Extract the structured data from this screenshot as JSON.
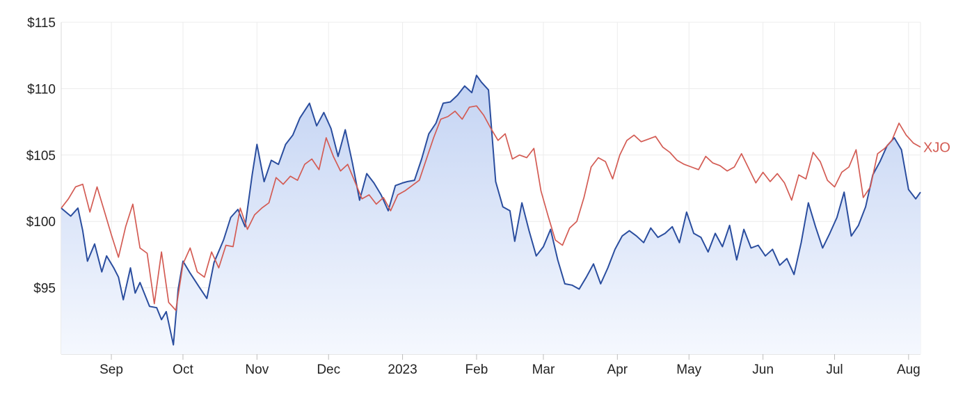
{
  "chart_data": {
    "type": "area",
    "y_ticks": [
      {
        "value": 95,
        "label": "$95"
      },
      {
        "value": 100,
        "label": "$100"
      },
      {
        "value": 105,
        "label": "$105"
      },
      {
        "value": 110,
        "label": "$110"
      },
      {
        "value": 115,
        "label": "$115"
      }
    ],
    "x_ticks": [
      {
        "date": "2022-09-01",
        "label": "Sep"
      },
      {
        "date": "2022-10-01",
        "label": "Oct"
      },
      {
        "date": "2022-11-01",
        "label": "Nov"
      },
      {
        "date": "2022-12-01",
        "label": "Dec"
      },
      {
        "date": "2023-01-01",
        "label": "2023"
      },
      {
        "date": "2023-02-01",
        "label": "Feb"
      },
      {
        "date": "2023-03-01",
        "label": "Mar"
      },
      {
        "date": "2023-04-01",
        "label": "Apr"
      },
      {
        "date": "2023-05-01",
        "label": "May"
      },
      {
        "date": "2023-06-01",
        "label": "Jun"
      },
      {
        "date": "2023-07-01",
        "label": "Jul"
      },
      {
        "date": "2023-08-01",
        "label": "Aug"
      }
    ],
    "x_range": [
      "2022-08-11",
      "2023-08-06"
    ],
    "y_range": [
      90,
      115
    ],
    "grid": true,
    "series": [
      {
        "name": "",
        "color": "#2a4d9e",
        "fill_top": "#c3d3f3",
        "fill_bottom": "#f5f8fe",
        "x": [
          "2022-08-11",
          "2022-08-15",
          "2022-08-18",
          "2022-08-20",
          "2022-08-22",
          "2022-08-25",
          "2022-08-28",
          "2022-08-30",
          "2022-09-02",
          "2022-09-04",
          "2022-09-06",
          "2022-09-09",
          "2022-09-11",
          "2022-09-13",
          "2022-09-17",
          "2022-09-20",
          "2022-09-22",
          "2022-09-24",
          "2022-09-27",
          "2022-09-29",
          "2022-10-01",
          "2022-10-04",
          "2022-10-08",
          "2022-10-11",
          "2022-10-14",
          "2022-10-18",
          "2022-10-21",
          "2022-10-24",
          "2022-10-27",
          "2022-10-30",
          "2022-11-01",
          "2022-11-04",
          "2022-11-07",
          "2022-11-10",
          "2022-11-13",
          "2022-11-16",
          "2022-11-19",
          "2022-11-23",
          "2022-11-26",
          "2022-11-29",
          "2022-12-02",
          "2022-12-05",
          "2022-12-08",
          "2022-12-11",
          "2022-12-14",
          "2022-12-17",
          "2022-12-20",
          "2022-12-23",
          "2022-12-26",
          "2022-12-29",
          "2023-01-01",
          "2023-01-03",
          "2023-01-06",
          "2023-01-09",
          "2023-01-12",
          "2023-01-15",
          "2023-01-18",
          "2023-01-21",
          "2023-01-24",
          "2023-01-27",
          "2023-01-30",
          "2023-02-01",
          "2023-02-03",
          "2023-02-06",
          "2023-02-09",
          "2023-02-12",
          "2023-02-15",
          "2023-02-17",
          "2023-02-20",
          "2023-02-23",
          "2023-02-26",
          "2023-03-01",
          "2023-03-04",
          "2023-03-07",
          "2023-03-10",
          "2023-03-13",
          "2023-03-16",
          "2023-03-19",
          "2023-03-22",
          "2023-03-25",
          "2023-03-28",
          "2023-03-31",
          "2023-04-03",
          "2023-04-06",
          "2023-04-09",
          "2023-04-12",
          "2023-04-15",
          "2023-04-18",
          "2023-04-21",
          "2023-04-24",
          "2023-04-27",
          "2023-04-30",
          "2023-05-03",
          "2023-05-06",
          "2023-05-09",
          "2023-05-12",
          "2023-05-15",
          "2023-05-18",
          "2023-05-21",
          "2023-05-24",
          "2023-05-27",
          "2023-05-30",
          "2023-06-02",
          "2023-06-05",
          "2023-06-08",
          "2023-06-11",
          "2023-06-14",
          "2023-06-17",
          "2023-06-20",
          "2023-06-23",
          "2023-06-26",
          "2023-06-29",
          "2023-07-02",
          "2023-07-05",
          "2023-07-08",
          "2023-07-11",
          "2023-07-14",
          "2023-07-17",
          "2023-07-20",
          "2023-07-23",
          "2023-07-26",
          "2023-07-29",
          "2023-08-01",
          "2023-08-04",
          "2023-08-06"
        ],
        "values": [
          101.0,
          100.4,
          101.0,
          99.3,
          97.0,
          98.3,
          96.2,
          97.4,
          96.5,
          95.8,
          94.1,
          96.5,
          94.6,
          95.4,
          93.6,
          93.5,
          92.6,
          93.2,
          90.7,
          94.9,
          97.0,
          96.1,
          95.0,
          94.2,
          96.9,
          98.6,
          100.3,
          100.9,
          99.6,
          103.5,
          105.8,
          103.0,
          104.6,
          104.3,
          105.8,
          106.5,
          107.8,
          108.9,
          107.2,
          108.2,
          107.0,
          104.9,
          106.9,
          104.4,
          101.6,
          103.6,
          102.9,
          102.0,
          100.8,
          102.7,
          102.9,
          103.0,
          103.1,
          104.7,
          106.6,
          107.4,
          108.9,
          109.0,
          109.5,
          110.2,
          109.7,
          111.0,
          110.5,
          109.9,
          103.0,
          101.1,
          100.8,
          98.5,
          101.4,
          99.3,
          97.4,
          98.1,
          99.4,
          97.1,
          95.3,
          95.2,
          94.9,
          95.8,
          96.8,
          95.3,
          96.5,
          97.9,
          98.9,
          99.3,
          98.9,
          98.4,
          99.5,
          98.8,
          99.1,
          99.6,
          98.4,
          100.7,
          99.1,
          98.8,
          97.7,
          99.1,
          98.1,
          99.7,
          97.1,
          99.4,
          98.0,
          98.2,
          97.4,
          97.9,
          96.7,
          97.2,
          96.0,
          98.4,
          101.4,
          99.6,
          98.0,
          99.1,
          100.3,
          102.2,
          98.9,
          99.7,
          101.1,
          103.5,
          104.5,
          105.7,
          106.3,
          105.4,
          102.4,
          101.7,
          102.2
        ]
      },
      {
        "name": "XJO",
        "color": "#d35b53",
        "x": [
          "2022-08-11",
          "2022-08-14",
          "2022-08-17",
          "2022-08-20",
          "2022-08-23",
          "2022-08-26",
          "2022-08-29",
          "2022-09-01",
          "2022-09-04",
          "2022-09-07",
          "2022-09-10",
          "2022-09-13",
          "2022-09-16",
          "2022-09-19",
          "2022-09-22",
          "2022-09-25",
          "2022-09-28",
          "2022-10-01",
          "2022-10-04",
          "2022-10-07",
          "2022-10-10",
          "2022-10-13",
          "2022-10-16",
          "2022-10-19",
          "2022-10-22",
          "2022-10-25",
          "2022-10-28",
          "2022-10-31",
          "2022-11-03",
          "2022-11-06",
          "2022-11-09",
          "2022-11-12",
          "2022-11-15",
          "2022-11-18",
          "2022-11-21",
          "2022-11-24",
          "2022-11-27",
          "2022-11-30",
          "2022-12-03",
          "2022-12-06",
          "2022-12-09",
          "2022-12-12",
          "2022-12-15",
          "2022-12-18",
          "2022-12-21",
          "2022-12-24",
          "2022-12-27",
          "2022-12-30",
          "2023-01-02",
          "2023-01-05",
          "2023-01-08",
          "2023-01-11",
          "2023-01-14",
          "2023-01-17",
          "2023-01-20",
          "2023-01-23",
          "2023-01-26",
          "2023-01-29",
          "2023-02-01",
          "2023-02-04",
          "2023-02-07",
          "2023-02-10",
          "2023-02-13",
          "2023-02-16",
          "2023-02-19",
          "2023-02-22",
          "2023-02-25",
          "2023-02-28",
          "2023-03-03",
          "2023-03-06",
          "2023-03-09",
          "2023-03-12",
          "2023-03-15",
          "2023-03-18",
          "2023-03-21",
          "2023-03-24",
          "2023-03-27",
          "2023-03-30",
          "2023-04-02",
          "2023-04-05",
          "2023-04-08",
          "2023-04-11",
          "2023-04-14",
          "2023-04-17",
          "2023-04-20",
          "2023-04-23",
          "2023-04-26",
          "2023-04-29",
          "2023-05-02",
          "2023-05-05",
          "2023-05-08",
          "2023-05-11",
          "2023-05-14",
          "2023-05-17",
          "2023-05-20",
          "2023-05-23",
          "2023-05-26",
          "2023-05-29",
          "2023-06-01",
          "2023-06-04",
          "2023-06-07",
          "2023-06-10",
          "2023-06-13",
          "2023-06-16",
          "2023-06-19",
          "2023-06-22",
          "2023-06-25",
          "2023-06-28",
          "2023-07-01",
          "2023-07-04",
          "2023-07-07",
          "2023-07-10",
          "2023-07-13",
          "2023-07-16",
          "2023-07-19",
          "2023-07-22",
          "2023-07-25",
          "2023-07-28",
          "2023-07-31",
          "2023-08-03",
          "2023-08-06"
        ],
        "values": [
          101.0,
          101.7,
          102.6,
          102.8,
          100.7,
          102.6,
          100.8,
          99.0,
          97.3,
          99.6,
          101.3,
          98.0,
          97.6,
          93.8,
          97.7,
          93.9,
          93.3,
          96.8,
          98.0,
          96.2,
          95.8,
          97.7,
          96.5,
          98.2,
          98.1,
          101.0,
          99.4,
          100.5,
          101.0,
          101.4,
          103.3,
          102.8,
          103.4,
          103.1,
          104.3,
          104.7,
          103.9,
          106.3,
          104.9,
          103.8,
          104.3,
          103.0,
          101.7,
          102.0,
          101.3,
          101.8,
          100.8,
          102.0,
          102.3,
          102.7,
          103.1,
          104.7,
          106.3,
          107.7,
          107.9,
          108.3,
          107.7,
          108.6,
          108.7,
          108.0,
          107.0,
          106.1,
          106.6,
          104.7,
          105.0,
          104.8,
          105.5,
          102.3,
          100.4,
          98.6,
          98.2,
          99.5,
          100.0,
          101.8,
          104.1,
          104.8,
          104.5,
          103.2,
          105.0,
          106.1,
          106.5,
          106.0,
          106.2,
          106.4,
          105.6,
          105.2,
          104.6,
          104.3,
          104.1,
          103.9,
          104.9,
          104.4,
          104.2,
          103.8,
          104.1,
          105.1,
          104.0,
          102.9,
          103.7,
          103.0,
          103.6,
          102.9,
          101.6,
          103.5,
          103.2,
          105.2,
          104.5,
          103.1,
          102.6,
          103.7,
          104.1,
          105.4,
          101.8,
          102.6,
          105.1,
          105.5,
          106.1,
          107.4,
          106.5,
          105.9,
          105.6
        ]
      }
    ]
  }
}
